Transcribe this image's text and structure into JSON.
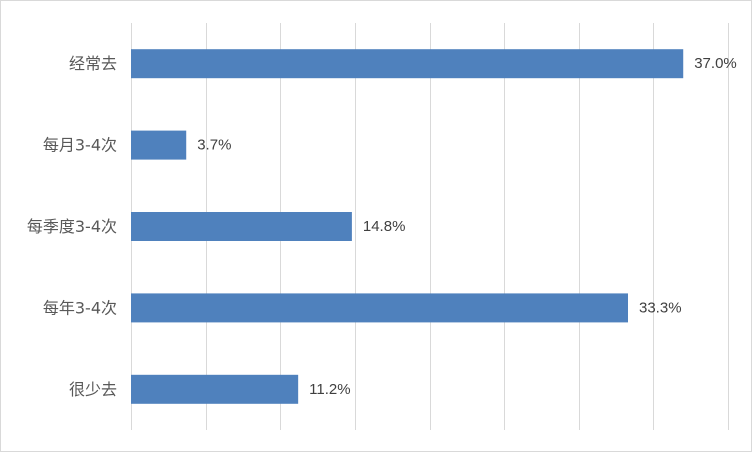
{
  "chart_data": {
    "type": "bar",
    "orientation": "horizontal",
    "title": "",
    "xlabel": "",
    "ylabel": "",
    "categories": [
      "经常去",
      "每月3-4次",
      "每季度3-4次",
      "每年3-4次",
      "很少去"
    ],
    "values": [
      37.0,
      3.7,
      14.8,
      33.3,
      11.2
    ],
    "value_labels": [
      "37.0%",
      "3.7%",
      "14.8%",
      "33.3%",
      "11.2%"
    ],
    "xlim": [
      0,
      40
    ],
    "x_gridlines": [
      0,
      5,
      10,
      15,
      20,
      25,
      30,
      35,
      40
    ],
    "grid": true,
    "legend": "none",
    "colors": {
      "bar": "#4f81bd",
      "grid": "#d9d9d9",
      "frame": "#d9d9d9"
    }
  }
}
